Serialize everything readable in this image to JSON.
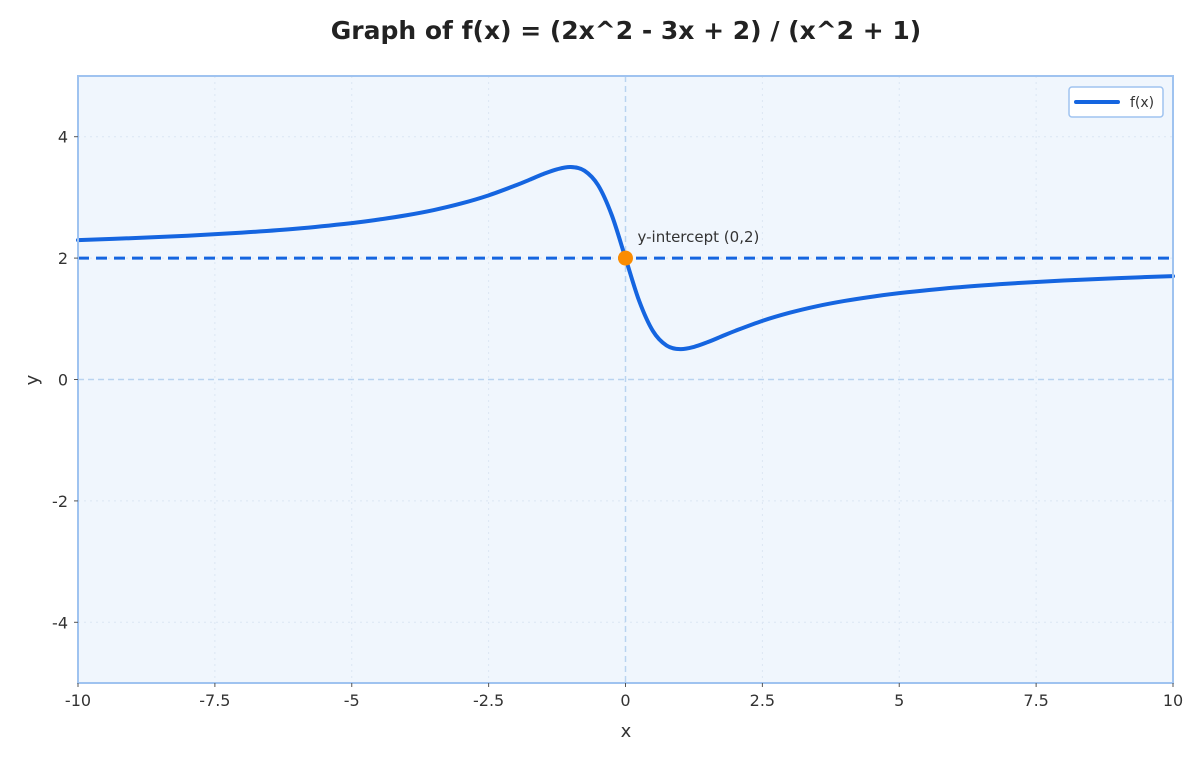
{
  "chart_data": {
    "type": "line",
    "title": "Graph of f(x) = (2x^2 - 3x + 2) / (x^2 + 1)",
    "xlabel": "x",
    "ylabel": "y",
    "xlim": [
      -10,
      10
    ],
    "ylim": [
      -5,
      5
    ],
    "xticks": [
      -10,
      -7.5,
      -5,
      -2.5,
      0,
      2.5,
      5,
      7.5,
      10
    ],
    "xtick_labels": [
      "-10",
      "-7.5",
      "-5",
      "-2.5",
      "0",
      "2.5",
      "5",
      "7.5",
      "10"
    ],
    "yticks": [
      -4,
      -2,
      0,
      2,
      4
    ],
    "ytick_labels": [
      "-4",
      "-2",
      "0",
      "2",
      "4"
    ],
    "grid": true,
    "legend_position": "top-right",
    "series": [
      {
        "name": "f(x)",
        "style": "solid",
        "color": "#1565e0",
        "x": [
          -10,
          -9,
          -8,
          -7,
          -6,
          -5,
          -4.5,
          -4,
          -3.5,
          -3,
          -2.5,
          -2,
          -1.75,
          -1.5,
          -1.25,
          -1,
          -0.75,
          -0.5,
          -0.25,
          0,
          0.25,
          0.5,
          0.75,
          1,
          1.25,
          1.5,
          1.75,
          2,
          2.5,
          3,
          3.5,
          4,
          4.5,
          5,
          6,
          7,
          8,
          9,
          10
        ],
        "y": [
          2.297,
          2.329,
          2.369,
          2.42,
          2.486,
          2.577,
          2.636,
          2.706,
          2.792,
          2.9,
          3.034,
          3.2,
          3.292,
          3.385,
          3.463,
          3.5,
          3.44,
          3.2,
          2.706,
          2.0,
          1.294,
          0.8,
          0.56,
          0.5,
          0.537,
          0.615,
          0.708,
          0.8,
          0.966,
          1.1,
          1.208,
          1.294,
          1.364,
          1.423,
          1.514,
          1.58,
          1.631,
          1.671,
          1.703
        ]
      }
    ],
    "reference_lines": [
      {
        "orientation": "horizontal",
        "y": 2,
        "style": "dashed",
        "color": "#1565e0"
      }
    ],
    "points": [
      {
        "x": 0,
        "y": 2,
        "color": "#fb8c00",
        "label": "y-intercept (0,2)"
      }
    ]
  },
  "colors": {
    "plot_background": "#f0f6fd",
    "plot_border": "#9fc3f0",
    "grid": "#dbe6f3",
    "zero_axis": "#b9d3f0",
    "curve": "#1565e0",
    "marker": "#fb8c00"
  }
}
